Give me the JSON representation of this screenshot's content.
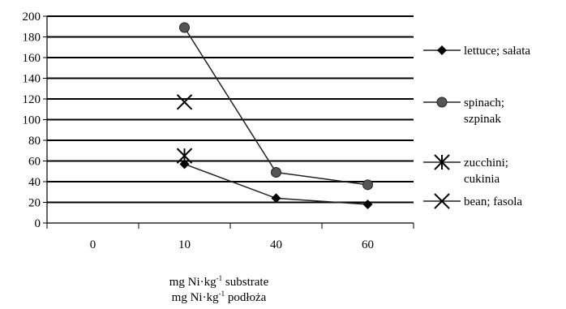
{
  "chart_data": {
    "type": "line",
    "categories": [
      "0",
      "10",
      "40",
      "60"
    ],
    "ylim": [
      0,
      200
    ],
    "yticks": [
      0,
      20,
      40,
      60,
      80,
      100,
      120,
      140,
      160,
      180,
      200
    ],
    "grid": true,
    "legend_position": "right",
    "xlabel": {
      "line1_prefix": "mg Ni·kg",
      "line1_sup": "-1",
      "line1_suffix": " substrate",
      "line2_prefix": "mg Ni·kg",
      "line2_sup": "-1",
      "line2_suffix": " podłoża"
    },
    "series": [
      {
        "name_lines": [
          "lettuce; sałata"
        ],
        "marker": "diamond",
        "values": [
          null,
          57,
          24,
          18
        ]
      },
      {
        "name_lines": [
          "spinach;",
          "szpinak"
        ],
        "marker": "circle",
        "values": [
          null,
          189,
          49,
          37
        ]
      },
      {
        "name_lines": [
          "zucchini;",
          "cukinia"
        ],
        "marker": "star",
        "values": [
          null,
          65,
          null,
          null
        ]
      },
      {
        "name_lines": [
          "bean; fasola"
        ],
        "marker": "x",
        "values": [
          null,
          117,
          null,
          null
        ]
      }
    ]
  }
}
